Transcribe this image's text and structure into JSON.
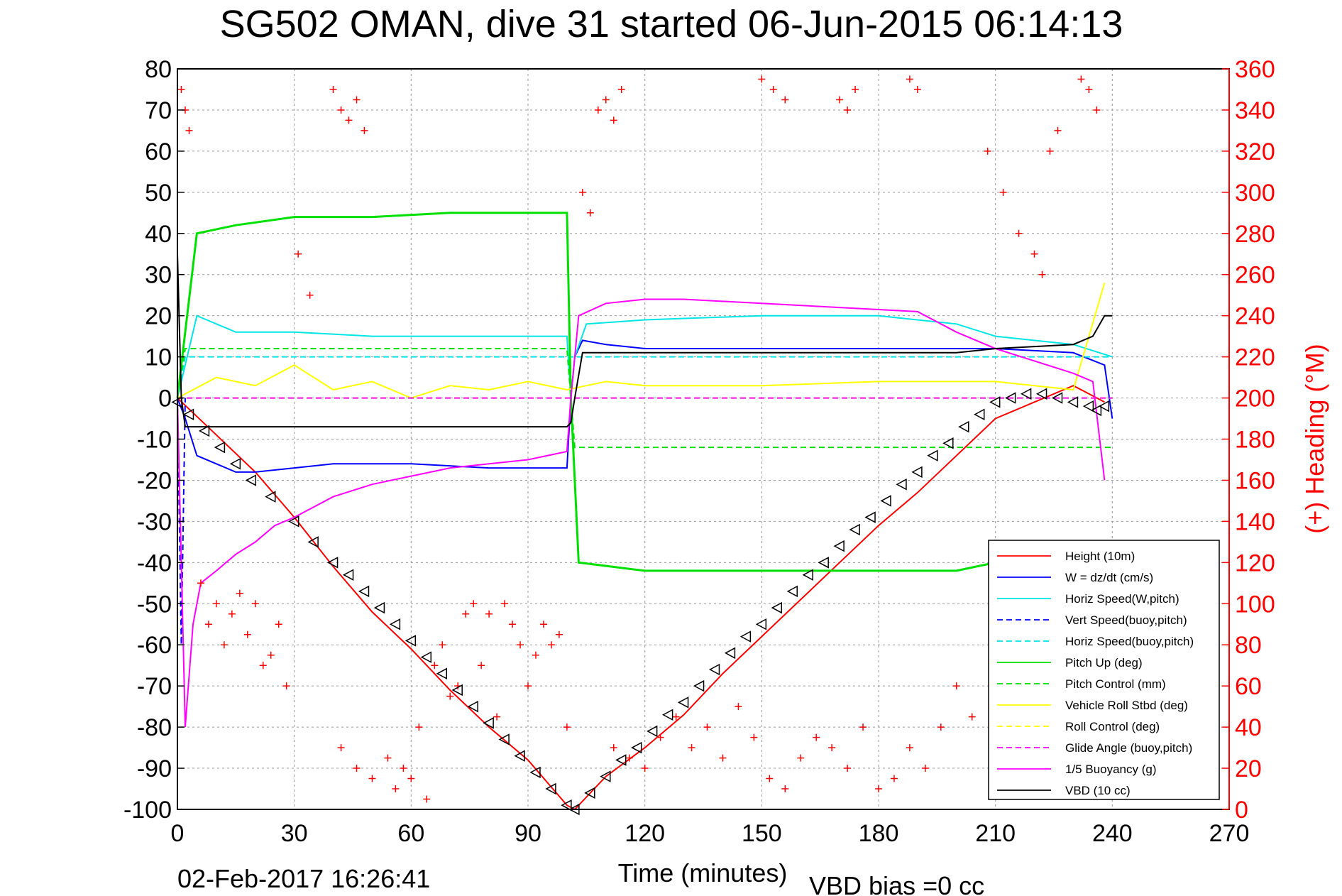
{
  "chart_data": {
    "type": "line",
    "title": "SG502 OMAN, dive 31 started 06-Jun-2015 06:14:13",
    "xlabel": "Time (minutes)",
    "ylabel_right": "(+) Heading (°M)",
    "xlim": [
      0,
      270
    ],
    "ylim": [
      -100,
      80
    ],
    "ylim_right": [
      0,
      360
    ],
    "grid": true,
    "legend_position": "bottom-right",
    "x_ticks": [
      "0",
      "30",
      "60",
      "90",
      "120",
      "150",
      "180",
      "210",
      "240",
      "270"
    ],
    "y_ticks": [
      "80",
      "70",
      "60",
      "50",
      "40",
      "30",
      "20",
      "10",
      "0",
      "-10",
      "-20",
      "-30",
      "-40",
      "-50",
      "-60",
      "-70",
      "-80",
      "-90",
      "-100"
    ],
    "y_right_ticks": [
      "360",
      "340",
      "320",
      "300",
      "280",
      "260",
      "240",
      "220",
      "200",
      "180",
      "160",
      "140",
      "120",
      "100",
      "80",
      "60",
      "40",
      "20",
      "0"
    ],
    "footer_date": "02-Feb-2017 16:26:41",
    "footer_note": "VBD bias =0 cc",
    "series": [
      {
        "name": "Height (10m)",
        "color": "#ff0000",
        "style": "solid",
        "x": [
          0,
          10,
          20,
          30,
          40,
          50,
          60,
          70,
          80,
          90,
          100,
          102,
          110,
          120,
          130,
          140,
          150,
          160,
          170,
          180,
          190,
          200,
          210,
          220,
          230,
          238
        ],
        "y": [
          0,
          -9,
          -18,
          -29,
          -41,
          -52,
          -61,
          -71,
          -80,
          -88,
          -99,
          -100,
          -92,
          -85,
          -77,
          -67,
          -58,
          -49,
          -40,
          -31,
          -23,
          -14,
          -5,
          -1,
          3,
          -1
        ]
      },
      {
        "name": "W = dz/dt (cm/s)",
        "color": "#0000ff",
        "style": "solid",
        "x": [
          0,
          2,
          5,
          10,
          15,
          20,
          30,
          40,
          60,
          80,
          90,
          100,
          101,
          102,
          104,
          110,
          120,
          150,
          180,
          200,
          210,
          230,
          238,
          240
        ],
        "y": [
          0,
          -5,
          -14,
          -16,
          -18,
          -18,
          -17,
          -16,
          -16,
          -17,
          -17,
          -17,
          0,
          10,
          14,
          13,
          12,
          12,
          12,
          12,
          12,
          11,
          8,
          -5
        ]
      },
      {
        "name": "Horiz Speed(W,pitch)",
        "color": "#00e5e5",
        "style": "solid",
        "x": [
          0,
          5,
          15,
          30,
          50,
          70,
          90,
          100,
          101,
          102,
          105,
          120,
          150,
          180,
          200,
          210,
          230,
          240
        ],
        "y": [
          0,
          20,
          16,
          16,
          15,
          15,
          15,
          15,
          0,
          10,
          18,
          19,
          20,
          20,
          18,
          15,
          13,
          10
        ]
      },
      {
        "name": "Vert Speed(buoy,pitch)",
        "color": "#0000ff",
        "style": "dashed",
        "x": [
          0,
          1,
          1.5,
          2
        ],
        "y": [
          0,
          -60,
          -30,
          0
        ]
      },
      {
        "name": "Horiz Speed(buoy,pitch)",
        "color": "#00e5e5",
        "style": "dashed",
        "x": [
          0,
          2,
          100,
          102,
          230,
          240
        ],
        "y": [
          0,
          10,
          10,
          10,
          10,
          10
        ]
      },
      {
        "name": "Pitch Up (deg)",
        "color": "#00e000",
        "style": "solid",
        "x": [
          0,
          5,
          15,
          30,
          50,
          70,
          90,
          100,
          101,
          103,
          120,
          150,
          180,
          200,
          210
        ],
        "y": [
          0,
          40,
          42,
          44,
          44,
          45,
          45,
          45,
          0,
          -40,
          -42,
          -42,
          -42,
          -42,
          -40
        ]
      },
      {
        "name": "Pitch Control (mm)",
        "color": "#00e000",
        "style": "dashed",
        "x": [
          0,
          2,
          100,
          102,
          230,
          240
        ],
        "y": [
          0,
          12,
          12,
          -12,
          -12,
          -12
        ]
      },
      {
        "name": "Vehicle Roll Stbd (deg)",
        "color": "#ffff00",
        "style": "solid",
        "x": [
          0,
          10,
          20,
          30,
          40,
          50,
          60,
          70,
          80,
          90,
          100,
          110,
          120,
          150,
          180,
          210,
          230,
          238
        ],
        "y": [
          0,
          5,
          3,
          8,
          2,
          4,
          0,
          3,
          2,
          4,
          2,
          4,
          3,
          3,
          4,
          4,
          2,
          28
        ]
      },
      {
        "name": "Roll Control (deg)",
        "color": "#ffff00",
        "style": "dashed",
        "x": [
          0,
          240
        ],
        "y": [
          0,
          0
        ]
      },
      {
        "name": "Glide Angle (buoy,pitch)",
        "color": "#ff00ff",
        "style": "dashed",
        "x": [
          0,
          240
        ],
        "y": [
          0,
          0
        ]
      },
      {
        "name": "1/5 Buoyancy (g)",
        "color": "#ff00ff",
        "style": "solid",
        "x": [
          0,
          2,
          4,
          6,
          10,
          15,
          20,
          25,
          30,
          40,
          50,
          60,
          70,
          80,
          90,
          100,
          101,
          103,
          110,
          120,
          130,
          150,
          170,
          190,
          200,
          210,
          220,
          230,
          235,
          238
        ],
        "y": [
          0,
          -80,
          -55,
          -45,
          -42,
          -38,
          -35,
          -31,
          -29,
          -24,
          -21,
          -19,
          -17,
          -16,
          -15,
          -13,
          0,
          20,
          23,
          24,
          24,
          23,
          22,
          21,
          16,
          12,
          9,
          6,
          4,
          -20
        ]
      },
      {
        "name": "VBD (10 cc)",
        "color": "#000000",
        "style": "solid",
        "x": [
          0,
          1,
          2,
          100,
          101,
          102,
          104,
          110,
          200,
          210,
          230,
          235,
          238,
          240
        ],
        "y": [
          35,
          0,
          -7,
          -7,
          -6,
          0,
          11,
          11,
          11,
          12,
          13,
          15,
          20,
          20
        ]
      }
    ],
    "heading": {
      "name": "Heading",
      "color": "#ff0000",
      "marker": "+",
      "axis": "right",
      "x": [
        1,
        2,
        3,
        40,
        42,
        44,
        46,
        48,
        31,
        34,
        6,
        8,
        10,
        12,
        14,
        16,
        18,
        20,
        22,
        24,
        26,
        28,
        42,
        46,
        50,
        54,
        56,
        58,
        60,
        62,
        64,
        66,
        68,
        70,
        72,
        74,
        76,
        78,
        80,
        82,
        84,
        86,
        88,
        90,
        92,
        94,
        96,
        98,
        100,
        108,
        110,
        112,
        114,
        104,
        106,
        112,
        116,
        120,
        124,
        128,
        132,
        136,
        140,
        144,
        148,
        152,
        156,
        160,
        164,
        168,
        172,
        176,
        180,
        184,
        188,
        192,
        196,
        200,
        204,
        150,
        153,
        156,
        170,
        172,
        174,
        188,
        190,
        208,
        212,
        216,
        220,
        222,
        224,
        226,
        232,
        234,
        236
      ],
      "y": [
        350,
        340,
        330,
        350,
        340,
        335,
        345,
        330,
        270,
        250,
        110,
        90,
        100,
        80,
        95,
        105,
        85,
        100,
        70,
        75,
        90,
        60,
        30,
        20,
        15,
        25,
        10,
        20,
        15,
        40,
        5,
        70,
        80,
        55,
        60,
        95,
        100,
        70,
        95,
        45,
        100,
        90,
        80,
        60,
        75,
        90,
        80,
        85,
        40,
        340,
        345,
        335,
        350,
        300,
        290,
        30,
        25,
        20,
        35,
        45,
        30,
        40,
        25,
        50,
        35,
        15,
        10,
        25,
        35,
        30,
        20,
        40,
        10,
        15,
        30,
        20,
        40,
        60,
        45,
        355,
        350,
        345,
        345,
        340,
        350,
        355,
        350,
        320,
        300,
        280,
        270,
        260,
        320,
        330,
        355,
        350,
        340
      ]
    },
    "depth_markers": {
      "name": "Depth samples",
      "color": "#000000",
      "x": [
        0,
        3,
        7,
        11,
        15,
        19,
        24,
        30,
        35,
        40,
        44,
        48,
        52,
        56,
        60,
        64,
        68,
        72,
        76,
        80,
        84,
        88,
        92,
        96,
        100,
        102,
        106,
        110,
        114,
        118,
        122,
        126,
        130,
        134,
        138,
        142,
        146,
        150,
        154,
        158,
        162,
        166,
        170,
        174,
        178,
        182,
        186,
        190,
        194,
        198,
        202,
        206,
        210,
        214,
        218,
        222,
        226,
        230,
        234,
        236,
        238
      ],
      "y": [
        -1,
        -4,
        -8,
        -12,
        -16,
        -20,
        -24,
        -30,
        -35,
        -40,
        -43,
        -47,
        -51,
        -55,
        -59,
        -63,
        -67,
        -71,
        -75,
        -79,
        -83,
        -87,
        -91,
        -95,
        -99,
        -100,
        -96,
        -92,
        -88,
        -85,
        -81,
        -77,
        -74,
        -70,
        -66,
        -62,
        -58,
        -55,
        -51,
        -47,
        -43,
        -40,
        -36,
        -32,
        -29,
        -25,
        -21,
        -18,
        -14,
        -11,
        -7,
        -4,
        -1,
        0,
        1,
        1,
        0,
        -1,
        -2,
        -3,
        -2
      ]
    }
  }
}
